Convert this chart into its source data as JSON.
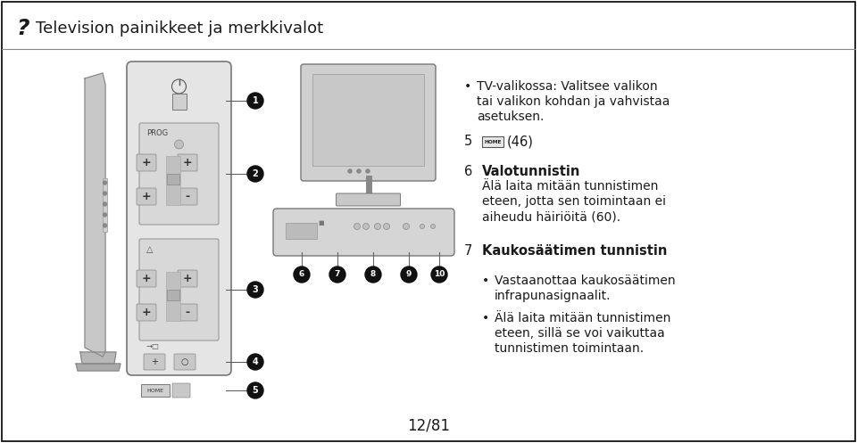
{
  "bg_color": "#ffffff",
  "border_color": "#000000",
  "title": "Television painikkeet ja merkkivalot",
  "title_fontsize": 13,
  "title_symbol": "?",
  "footer": "12/81",
  "text_color": "#1a1a1a",
  "bullet_line1": "TV-valikossa: Valitsee valikon",
  "bullet_line1b": "tai valikon kohdan ja vahvistaa",
  "bullet_line1c": "asetuksen.",
  "item5": "5",
  "item5_icon": "HOME",
  "item5_text": "(46)",
  "item6": "6",
  "item6_title": "Valotunnistin",
  "item6_line1": "Älä laita mitään tunnistimen",
  "item6_line2": "eteen, jotta sen toimintaan ei",
  "item6_line3": "aiheudu häiriöitä (60).",
  "item7": "7",
  "item7_title": "Kaukosäätimen tunnistin",
  "item7_b1": "Vastaanottaa kaukosäätimen",
  "item7_b1b": "infrapunasignaalit.",
  "item7_b2": "Älä laita mitään tunnistimen",
  "item7_b2b": "eteen, sillä se voi vaikuttaa",
  "item7_b2c": "tunnistimen toimintaan."
}
